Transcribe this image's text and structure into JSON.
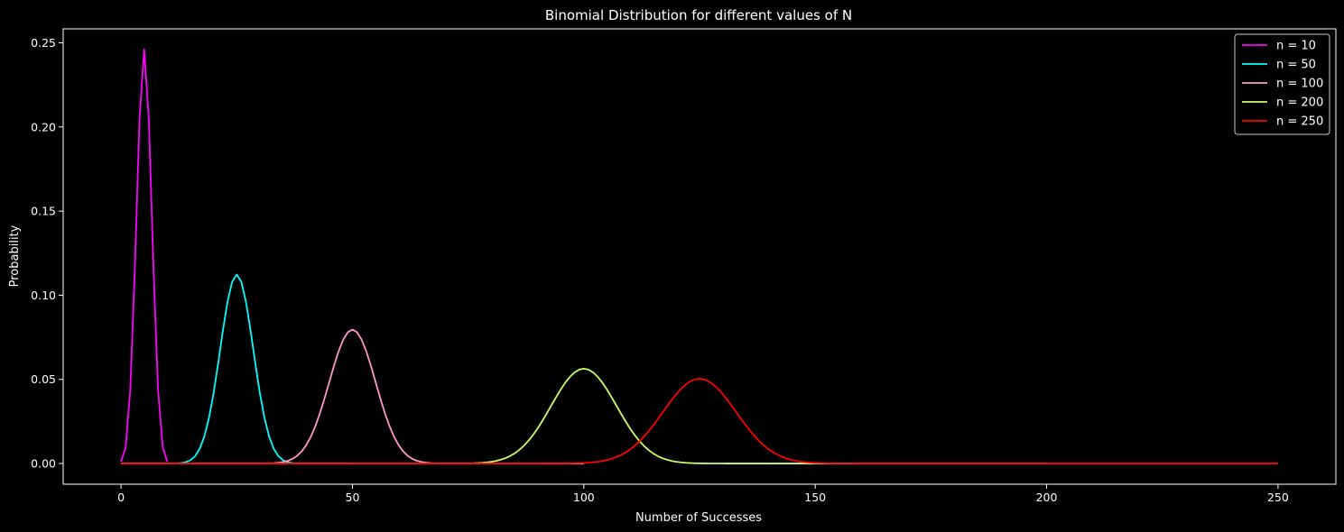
{
  "chart_data": {
    "type": "line",
    "title": "Binomial Distribution for different values of N",
    "xlabel": "Number of Successes",
    "ylabel": "Probability",
    "xlim": [
      -12.5,
      262.5
    ],
    "ylim": [
      -0.0123,
      0.2583
    ],
    "xticks": [
      "0",
      "50",
      "100",
      "150",
      "200",
      "250"
    ],
    "yticks": [
      "0.00",
      "0.05",
      "0.10",
      "0.15",
      "0.20",
      "0.25"
    ],
    "p": 0.5,
    "background": "#000000",
    "grid": false,
    "legend_position": "top-right",
    "series": [
      {
        "name": "n = 10",
        "n": 10,
        "color": "#ff00ff"
      },
      {
        "name": "n = 50",
        "n": 50,
        "color": "#00ffff"
      },
      {
        "name": "n = 100",
        "n": 100,
        "color": "#ff99cc"
      },
      {
        "name": "n = 200",
        "n": 200,
        "color": "#ccff66"
      },
      {
        "name": "n = 250",
        "n": 250,
        "color": "#ff0000"
      }
    ]
  }
}
